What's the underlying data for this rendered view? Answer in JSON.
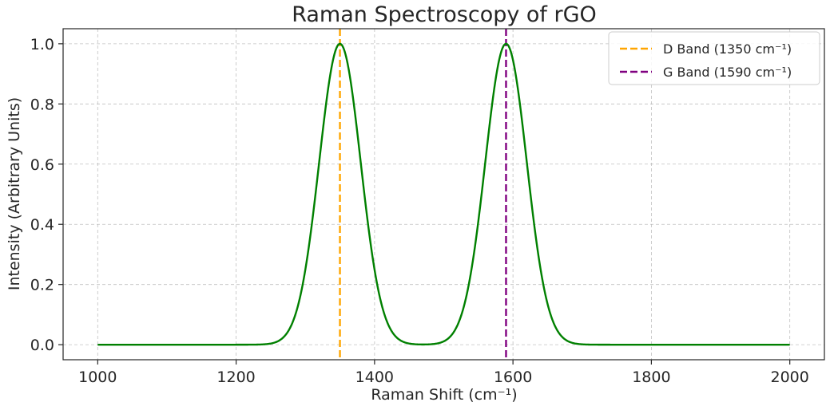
{
  "chart_data": {
    "type": "line",
    "title": "Raman Spectroscopy of rGO",
    "xlabel": "Raman Shift (cm⁻¹)",
    "ylabel": "Intensity (Arbitrary Units)",
    "xlim": [
      950,
      2050
    ],
    "ylim": [
      -0.05,
      1.05
    ],
    "xticks": [
      1000,
      1200,
      1400,
      1600,
      1800,
      2000
    ],
    "yticks": [
      0.0,
      0.2,
      0.4,
      0.6,
      0.8,
      1.0
    ],
    "xtick_labels": [
      "1000",
      "1200",
      "1400",
      "1600",
      "1800",
      "2000"
    ],
    "ytick_labels": [
      "0.0",
      "0.2",
      "0.4",
      "0.6",
      "0.8",
      "1.0"
    ],
    "grid": true,
    "legend_position": "top-right",
    "series": [
      {
        "color": "#008000",
        "x_range": [
          1000,
          2000
        ],
        "peaks": [
          {
            "center": 1350,
            "sigma": 30,
            "amplitude": 1.0
          },
          {
            "center": 1590,
            "sigma": 30,
            "amplitude": 1.0
          }
        ]
      }
    ],
    "reference_lines": [
      {
        "name": "D Band (1350 cm⁻¹)",
        "x": 1350,
        "color": "#FFA500",
        "style": "dashed"
      },
      {
        "name": "G Band (1590 cm⁻¹)",
        "x": 1590,
        "color": "#800080",
        "style": "dashed"
      }
    ]
  }
}
